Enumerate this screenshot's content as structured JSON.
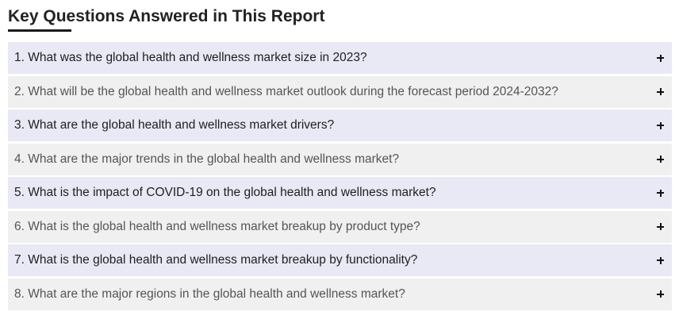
{
  "section": {
    "title": "Key Questions Answered in This Report"
  },
  "faq": {
    "items": [
      {
        "question": "1. What was the global health and wellness market size in 2023?",
        "icon": "plus-icon"
      },
      {
        "question": "2. What will be the global health and wellness market outlook during the forecast period 2024-2032?",
        "icon": "plus-icon"
      },
      {
        "question": "3. What are the global health and wellness market drivers?",
        "icon": "plus-icon"
      },
      {
        "question": "4. What are the major trends in the global health and wellness market?",
        "icon": "plus-icon"
      },
      {
        "question": "5. What is the impact of COVID-19 on the global health and wellness market?",
        "icon": "plus-icon"
      },
      {
        "question": "6. What is the global health and wellness market breakup by product type?",
        "icon": "plus-icon"
      },
      {
        "question": "7. What is the global health and wellness market breakup by functionality?",
        "icon": "plus-icon"
      },
      {
        "question": "8. What are the major regions in the global health and wellness market?",
        "icon": "plus-icon"
      }
    ]
  },
  "colors": {
    "row_odd": "#e8e9f5",
    "row_even": "#f0f0f0",
    "heading_text": "#222222",
    "underline": "#1a1a1a"
  }
}
